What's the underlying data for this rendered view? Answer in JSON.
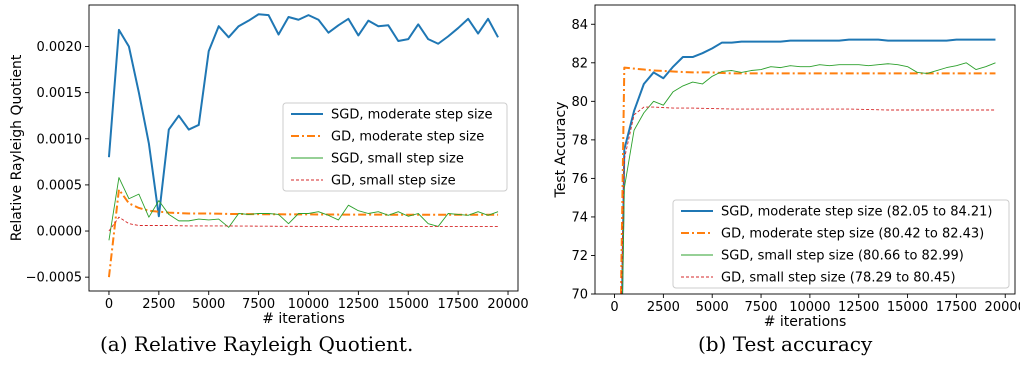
{
  "captions": {
    "a": "(a) Relative Rayleigh Quotient.",
    "b": "(b) Test accuracy"
  },
  "chart_data": [
    {
      "type": "line",
      "title": "",
      "xlabel": "# iterations",
      "ylabel": "Relative Rayleigh Quotient",
      "xlim": [
        -1000,
        20500
      ],
      "ylim": [
        -0.00065,
        0.00245
      ],
      "xticks": [
        0,
        2500,
        5000,
        7500,
        10000,
        12500,
        15000,
        17500,
        20000
      ],
      "xtick_labels": [
        "0",
        "2500",
        "5000",
        "7500",
        "10000",
        "12500",
        "15000",
        "17500",
        "20000"
      ],
      "yticks": [
        -0.0005,
        0.0,
        0.0005,
        0.001,
        0.0015,
        0.002
      ],
      "ytick_labels": [
        "−0.0005",
        "0.0000",
        "0.0005",
        "0.0010",
        "0.0015",
        "0.0020"
      ],
      "grid": false,
      "legend_position": "center-right",
      "series": [
        {
          "name": "SGD, moderate step size",
          "color": "#1f77b4",
          "style": "solid",
          "x": [
            0,
            500,
            1000,
            1500,
            2000,
            2500,
            3000,
            3500,
            4000,
            4500,
            5000,
            5500,
            6000,
            6500,
            7000,
            7500,
            8000,
            8500,
            9000,
            9500,
            10000,
            10500,
            11000,
            11500,
            12000,
            12500,
            13000,
            13500,
            14000,
            14500,
            15000,
            15500,
            16000,
            16500,
            17000,
            17500,
            18000,
            18500,
            19000,
            19500
          ],
          "y": [
            0.0008,
            0.00218,
            0.002,
            0.0015,
            0.00095,
            0.00016,
            0.0011,
            0.00125,
            0.0011,
            0.00115,
            0.00195,
            0.00222,
            0.0021,
            0.00222,
            0.00228,
            0.00235,
            0.00234,
            0.00213,
            0.00232,
            0.00229,
            0.00234,
            0.00229,
            0.00215,
            0.00223,
            0.0023,
            0.00212,
            0.00228,
            0.00222,
            0.00223,
            0.00206,
            0.00208,
            0.00224,
            0.00208,
            0.00203,
            0.00211,
            0.0022,
            0.0023,
            0.00214,
            0.0023,
            0.0021
          ]
        },
        {
          "name": "GD, moderate step size",
          "color": "#ff7f0e",
          "style": "dashdot",
          "x": [
            0,
            500,
            1000,
            1500,
            2000,
            2500,
            3000,
            4000,
            5000,
            6000,
            8000,
            10000,
            12000,
            14000,
            16000,
            18000,
            19500
          ],
          "y": [
            -0.0005,
            0.00045,
            0.0003,
            0.00025,
            0.00022,
            0.00021,
            0.0002,
            0.00019,
            0.00019,
            0.000185,
            0.000182,
            0.00018,
            0.000178,
            0.000177,
            0.000176,
            0.000176,
            0.000176
          ]
        },
        {
          "name": "SGD, small step size",
          "color": "#2ca02c",
          "style": "solid-thin",
          "x": [
            0,
            500,
            1000,
            1500,
            2000,
            2500,
            3000,
            3500,
            4000,
            4500,
            5000,
            5500,
            6000,
            6500,
            7000,
            7500,
            8000,
            8500,
            9000,
            9500,
            10000,
            10500,
            11000,
            11500,
            12000,
            12500,
            13000,
            13500,
            14000,
            14500,
            15000,
            15500,
            16000,
            16500,
            17000,
            17500,
            18000,
            18500,
            19000,
            19500
          ],
          "y": [
            -0.0001,
            0.00058,
            0.00035,
            0.0004,
            0.00015,
            0.00033,
            0.00018,
            0.00011,
            0.00011,
            0.00013,
            0.00012,
            0.00013,
            4e-05,
            0.00019,
            0.00018,
            0.00019,
            0.00019,
            0.00018,
            8e-05,
            0.00019,
            0.00019,
            0.00021,
            0.00017,
            0.00012,
            0.00028,
            0.00022,
            0.00019,
            0.00021,
            0.00017,
            0.00021,
            0.00016,
            0.00019,
            8e-05,
            5e-05,
            0.00019,
            0.00018,
            0.00017,
            0.00021,
            0.00017,
            0.00021
          ]
        },
        {
          "name": "GD, small step size",
          "color": "#d62728",
          "style": "dashed-thin",
          "x": [
            0,
            500,
            1000,
            1500,
            2000,
            3000,
            4000,
            6000,
            8000,
            10000,
            12000,
            14000,
            16000,
            18000,
            19500
          ],
          "y": [
            0.0,
            0.00015,
            8e-05,
            6e-05,
            6e-05,
            6e-05,
            5.5e-05,
            5.5e-05,
            5.2e-05,
            5e-05,
            5e-05,
            5e-05,
            5e-05,
            5e-05,
            5e-05
          ]
        }
      ]
    },
    {
      "type": "line",
      "title": "",
      "xlabel": "# iterations",
      "ylabel": "Test Accuracy",
      "xlim": [
        -1000,
        20500
      ],
      "ylim": [
        70,
        85
      ],
      "xticks": [
        0,
        2500,
        5000,
        7500,
        10000,
        12500,
        15000,
        17500,
        20000
      ],
      "xtick_labels": [
        "0",
        "2500",
        "5000",
        "7500",
        "10000",
        "12500",
        "15000",
        "17500",
        "20000"
      ],
      "yticks": [
        70,
        72,
        74,
        76,
        78,
        80,
        82,
        84
      ],
      "ytick_labels": [
        "70",
        "72",
        "74",
        "76",
        "78",
        "80",
        "82",
        "84"
      ],
      "grid": false,
      "legend_position": "lower-right",
      "series": [
        {
          "name": "SGD, moderate step size (82.05 to 84.21)",
          "color": "#1f77b4",
          "style": "solid",
          "x": [
            390,
            500,
            1000,
            1500,
            2000,
            2500,
            3000,
            3500,
            4000,
            4500,
            5000,
            5500,
            6000,
            6500,
            7000,
            7500,
            8000,
            8500,
            9000,
            9500,
            10000,
            10500,
            11000,
            11500,
            12000,
            12500,
            13000,
            13500,
            14000,
            14500,
            15000,
            15500,
            16000,
            16500,
            17000,
            17500,
            18000,
            18500,
            19000,
            19500
          ],
          "y": [
            70,
            77.5,
            79.5,
            80.9,
            81.5,
            81.2,
            81.8,
            82.3,
            82.3,
            82.5,
            82.75,
            83.05,
            83.05,
            83.1,
            83.1,
            83.1,
            83.1,
            83.1,
            83.15,
            83.15,
            83.15,
            83.15,
            83.15,
            83.15,
            83.2,
            83.2,
            83.2,
            83.2,
            83.15,
            83.15,
            83.15,
            83.15,
            83.15,
            83.15,
            83.15,
            83.2,
            83.2,
            83.2,
            83.2,
            83.2
          ]
        },
        {
          "name": "GD, moderate step size (80.42 to 82.43)",
          "color": "#ff7f0e",
          "style": "dashdot",
          "x": [
            330,
            500,
            1000,
            1500,
            2000,
            3000,
            4000,
            5000,
            6000,
            8000,
            10000,
            12000,
            14000,
            16000,
            18000,
            19500
          ],
          "y": [
            70,
            81.75,
            81.7,
            81.65,
            81.6,
            81.55,
            81.5,
            81.5,
            81.45,
            81.45,
            81.45,
            81.45,
            81.45,
            81.45,
            81.45,
            81.45
          ]
        },
        {
          "name": "SGD, small step size (80.66 to 82.99)",
          "color": "#2ca02c",
          "style": "solid-thin",
          "x": [
            410,
            500,
            1000,
            1500,
            2000,
            2500,
            3000,
            3500,
            4000,
            4500,
            5000,
            5500,
            6000,
            6500,
            7000,
            7500,
            8000,
            8500,
            9000,
            9500,
            10000,
            10500,
            11000,
            11500,
            12000,
            12500,
            13000,
            13500,
            14000,
            14500,
            15000,
            15500,
            16000,
            16500,
            17000,
            17500,
            18000,
            18500,
            19000,
            19500
          ],
          "y": [
            70,
            75.5,
            78.5,
            79.4,
            80.0,
            79.8,
            80.5,
            80.8,
            81.0,
            80.9,
            81.3,
            81.55,
            81.6,
            81.5,
            81.6,
            81.65,
            81.8,
            81.75,
            81.85,
            81.8,
            81.8,
            81.9,
            81.85,
            81.9,
            81.9,
            81.9,
            81.85,
            81.9,
            81.95,
            81.9,
            81.8,
            81.5,
            81.45,
            81.6,
            81.75,
            81.85,
            82.0,
            81.65,
            81.8,
            82.0
          ]
        },
        {
          "name": "GD, small step size (78.29 to 80.45)",
          "color": "#d62728",
          "style": "dashed-thin",
          "x": [
            360,
            500,
            1000,
            1500,
            2000,
            3000,
            4000,
            6000,
            8000,
            10000,
            12000,
            14000,
            16000,
            18000,
            19500
          ],
          "y": [
            70,
            77.0,
            79.3,
            79.7,
            79.7,
            79.65,
            79.65,
            79.6,
            79.6,
            79.6,
            79.6,
            79.55,
            79.55,
            79.55,
            79.55
          ]
        }
      ]
    }
  ]
}
